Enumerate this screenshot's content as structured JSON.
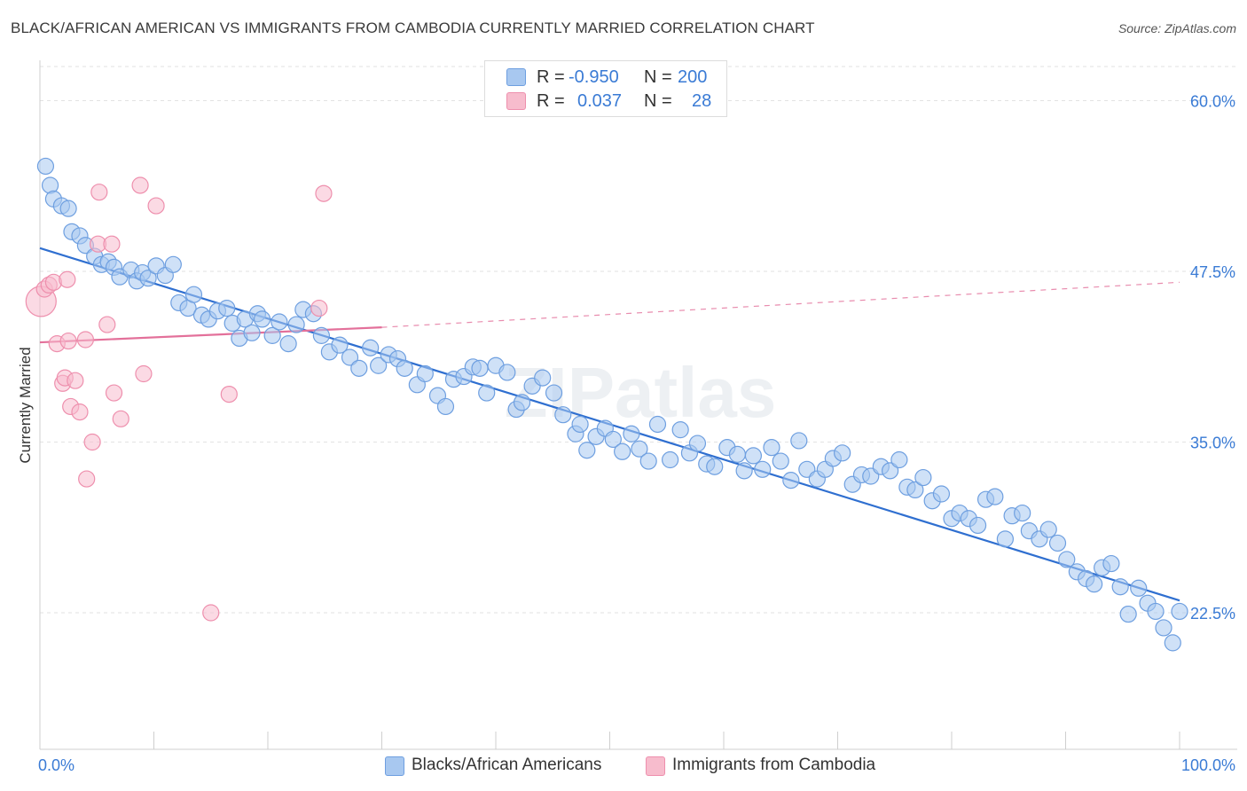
{
  "title": "BLACK/AFRICAN AMERICAN VS IMMIGRANTS FROM CAMBODIA CURRENTLY MARRIED CORRELATION CHART",
  "source": "Source: ZipAtlas.com",
  "watermark": "ZIPatlas",
  "legend": {
    "rows": [
      {
        "r_label": "R =",
        "r_value": "-0.950",
        "n_label": "N =",
        "n_value": "200"
      },
      {
        "r_label": "R =",
        "r_value": "0.037",
        "n_label": "N =",
        "n_value": "28"
      }
    ]
  },
  "bottom_legend": {
    "series1": "Blacks/African Americans",
    "series2": "Immigrants from Cambodia"
  },
  "colors": {
    "blue_fill": "#a8c8f0",
    "blue_stroke": "#6e9fe0",
    "blue_line": "#2f6fd0",
    "pink_fill": "#f7bccd",
    "pink_stroke": "#ee8fad",
    "pink_line": "#e3709a",
    "axis_text": "#3a7bd5"
  },
  "chart_data": {
    "type": "scatter",
    "title": "BLACK/AFRICAN AMERICAN VS IMMIGRANTS FROM CAMBODIA CURRENTLY MARRIED CORRELATION CHART",
    "ylabel": "Currently Married",
    "xlabel": "",
    "x_tick_labels": [
      "0.0%",
      "100.0%"
    ],
    "y_tick_labels": [
      "60.0%",
      "47.5%",
      "35.0%",
      "22.5%"
    ],
    "y_ticks": [
      60.0,
      47.5,
      35.0,
      22.5
    ],
    "xlim": [
      0,
      100
    ],
    "ylim": [
      12.5,
      62.5
    ],
    "series": [
      {
        "name": "Blacks/African Americans",
        "r": -0.95,
        "n": 200,
        "trend": {
          "x0": 0,
          "y0": 49.2,
          "x1": 100,
          "y1": 23.4,
          "dashed_to": null
        },
        "points": [
          [
            0.5,
            55.2
          ],
          [
            0.9,
            53.8
          ],
          [
            1.2,
            52.8
          ],
          [
            1.9,
            52.3
          ],
          [
            2.5,
            52.1
          ],
          [
            2.8,
            50.4
          ],
          [
            3.5,
            50.1
          ],
          [
            4.0,
            49.4
          ],
          [
            4.8,
            48.6
          ],
          [
            5.4,
            48.0
          ],
          [
            6.0,
            48.2
          ],
          [
            6.5,
            47.8
          ],
          [
            7.0,
            47.1
          ],
          [
            8.0,
            47.6
          ],
          [
            8.5,
            46.8
          ],
          [
            9.0,
            47.4
          ],
          [
            9.5,
            47.0
          ],
          [
            10.2,
            47.9
          ],
          [
            11.0,
            47.2
          ],
          [
            11.7,
            48.0
          ],
          [
            12.2,
            45.2
          ],
          [
            13.0,
            44.8
          ],
          [
            13.5,
            45.8
          ],
          [
            14.2,
            44.3
          ],
          [
            14.8,
            44.0
          ],
          [
            15.6,
            44.6
          ],
          [
            16.4,
            44.8
          ],
          [
            16.9,
            43.7
          ],
          [
            17.5,
            42.6
          ],
          [
            18.0,
            44.0
          ],
          [
            18.6,
            43.0
          ],
          [
            19.1,
            44.4
          ],
          [
            19.5,
            44.0
          ],
          [
            20.4,
            42.8
          ],
          [
            21.0,
            43.8
          ],
          [
            21.8,
            42.2
          ],
          [
            22.5,
            43.6
          ],
          [
            23.1,
            44.7
          ],
          [
            24.0,
            44.4
          ],
          [
            24.7,
            42.8
          ],
          [
            25.4,
            41.6
          ],
          [
            26.3,
            42.1
          ],
          [
            27.2,
            41.2
          ],
          [
            28.0,
            40.4
          ],
          [
            29.0,
            41.9
          ],
          [
            29.7,
            40.6
          ],
          [
            30.6,
            41.4
          ],
          [
            31.4,
            41.1
          ],
          [
            32.0,
            40.4
          ],
          [
            33.1,
            39.2
          ],
          [
            33.8,
            40.0
          ],
          [
            34.9,
            38.4
          ],
          [
            35.6,
            37.6
          ],
          [
            36.3,
            39.6
          ],
          [
            37.2,
            39.8
          ],
          [
            38.0,
            40.5
          ],
          [
            38.6,
            40.4
          ],
          [
            39.2,
            38.6
          ],
          [
            40.0,
            40.6
          ],
          [
            41.0,
            40.1
          ],
          [
            41.8,
            37.4
          ],
          [
            42.3,
            37.9
          ],
          [
            43.2,
            39.1
          ],
          [
            44.1,
            39.7
          ],
          [
            45.1,
            38.6
          ],
          [
            45.9,
            37.0
          ],
          [
            47.0,
            35.6
          ],
          [
            47.4,
            36.3
          ],
          [
            48.0,
            34.4
          ],
          [
            48.8,
            35.4
          ],
          [
            49.6,
            36.0
          ],
          [
            50.3,
            35.2
          ],
          [
            51.1,
            34.3
          ],
          [
            51.9,
            35.6
          ],
          [
            52.6,
            34.5
          ],
          [
            53.4,
            33.6
          ],
          [
            54.2,
            36.3
          ],
          [
            55.3,
            33.7
          ],
          [
            56.2,
            35.9
          ],
          [
            57.0,
            34.2
          ],
          [
            57.7,
            34.9
          ],
          [
            58.5,
            33.4
          ],
          [
            59.2,
            33.2
          ],
          [
            60.3,
            34.6
          ],
          [
            61.2,
            34.1
          ],
          [
            61.8,
            32.9
          ],
          [
            62.6,
            34.0
          ],
          [
            63.4,
            33.0
          ],
          [
            64.2,
            34.6
          ],
          [
            65.0,
            33.6
          ],
          [
            65.9,
            32.2
          ],
          [
            66.6,
            35.1
          ],
          [
            67.3,
            33.0
          ],
          [
            68.2,
            32.3
          ],
          [
            68.9,
            33.0
          ],
          [
            69.6,
            33.8
          ],
          [
            70.4,
            34.2
          ],
          [
            71.3,
            31.9
          ],
          [
            72.1,
            32.6
          ],
          [
            72.9,
            32.5
          ],
          [
            73.8,
            33.2
          ],
          [
            74.6,
            32.9
          ],
          [
            75.4,
            33.7
          ],
          [
            76.1,
            31.7
          ],
          [
            76.8,
            31.5
          ],
          [
            77.5,
            32.4
          ],
          [
            78.3,
            30.7
          ],
          [
            79.1,
            31.2
          ],
          [
            80.0,
            29.4
          ],
          [
            80.7,
            29.8
          ],
          [
            81.5,
            29.4
          ],
          [
            82.3,
            28.9
          ],
          [
            83.0,
            30.8
          ],
          [
            83.8,
            31.0
          ],
          [
            84.7,
            27.9
          ],
          [
            85.3,
            29.6
          ],
          [
            86.2,
            29.8
          ],
          [
            86.8,
            28.5
          ],
          [
            87.7,
            27.9
          ],
          [
            88.5,
            28.6
          ],
          [
            89.3,
            27.6
          ],
          [
            90.1,
            26.4
          ],
          [
            91.0,
            25.5
          ],
          [
            91.8,
            25.0
          ],
          [
            92.5,
            24.6
          ],
          [
            93.2,
            25.8
          ],
          [
            94.0,
            26.1
          ],
          [
            94.8,
            24.4
          ],
          [
            95.5,
            22.4
          ],
          [
            96.4,
            24.3
          ],
          [
            97.2,
            23.2
          ],
          [
            97.9,
            22.6
          ],
          [
            98.6,
            21.4
          ],
          [
            99.4,
            20.3
          ],
          [
            100.0,
            22.6
          ]
        ]
      },
      {
        "name": "Immigrants from Cambodia",
        "r": 0.037,
        "n": 28,
        "trend": {
          "x0": 0,
          "y0": 42.3,
          "x1": 30,
          "y1": 43.4,
          "dashed_to": {
            "x": 100,
            "y": 46.7
          }
        },
        "points": [
          [
            0.1,
            45.3
          ],
          [
            0.4,
            46.2
          ],
          [
            0.8,
            46.5
          ],
          [
            1.2,
            46.7
          ],
          [
            1.5,
            42.2
          ],
          [
            2.0,
            39.3
          ],
          [
            2.2,
            39.7
          ],
          [
            2.5,
            42.4
          ],
          [
            2.7,
            37.6
          ],
          [
            3.1,
            39.5
          ],
          [
            3.5,
            37.2
          ],
          [
            4.0,
            42.5
          ],
          [
            4.6,
            35.0
          ],
          [
            4.1,
            32.3
          ],
          [
            5.1,
            49.5
          ],
          [
            5.2,
            53.3
          ],
          [
            5.9,
            43.6
          ],
          [
            6.3,
            49.5
          ],
          [
            6.5,
            38.6
          ],
          [
            7.1,
            36.7
          ],
          [
            8.8,
            53.8
          ],
          [
            9.1,
            40.0
          ],
          [
            10.2,
            52.3
          ],
          [
            15.0,
            22.5
          ],
          [
            16.6,
            38.5
          ],
          [
            24.5,
            44.8
          ],
          [
            24.9,
            53.2
          ],
          [
            2.4,
            46.9
          ]
        ]
      }
    ]
  }
}
